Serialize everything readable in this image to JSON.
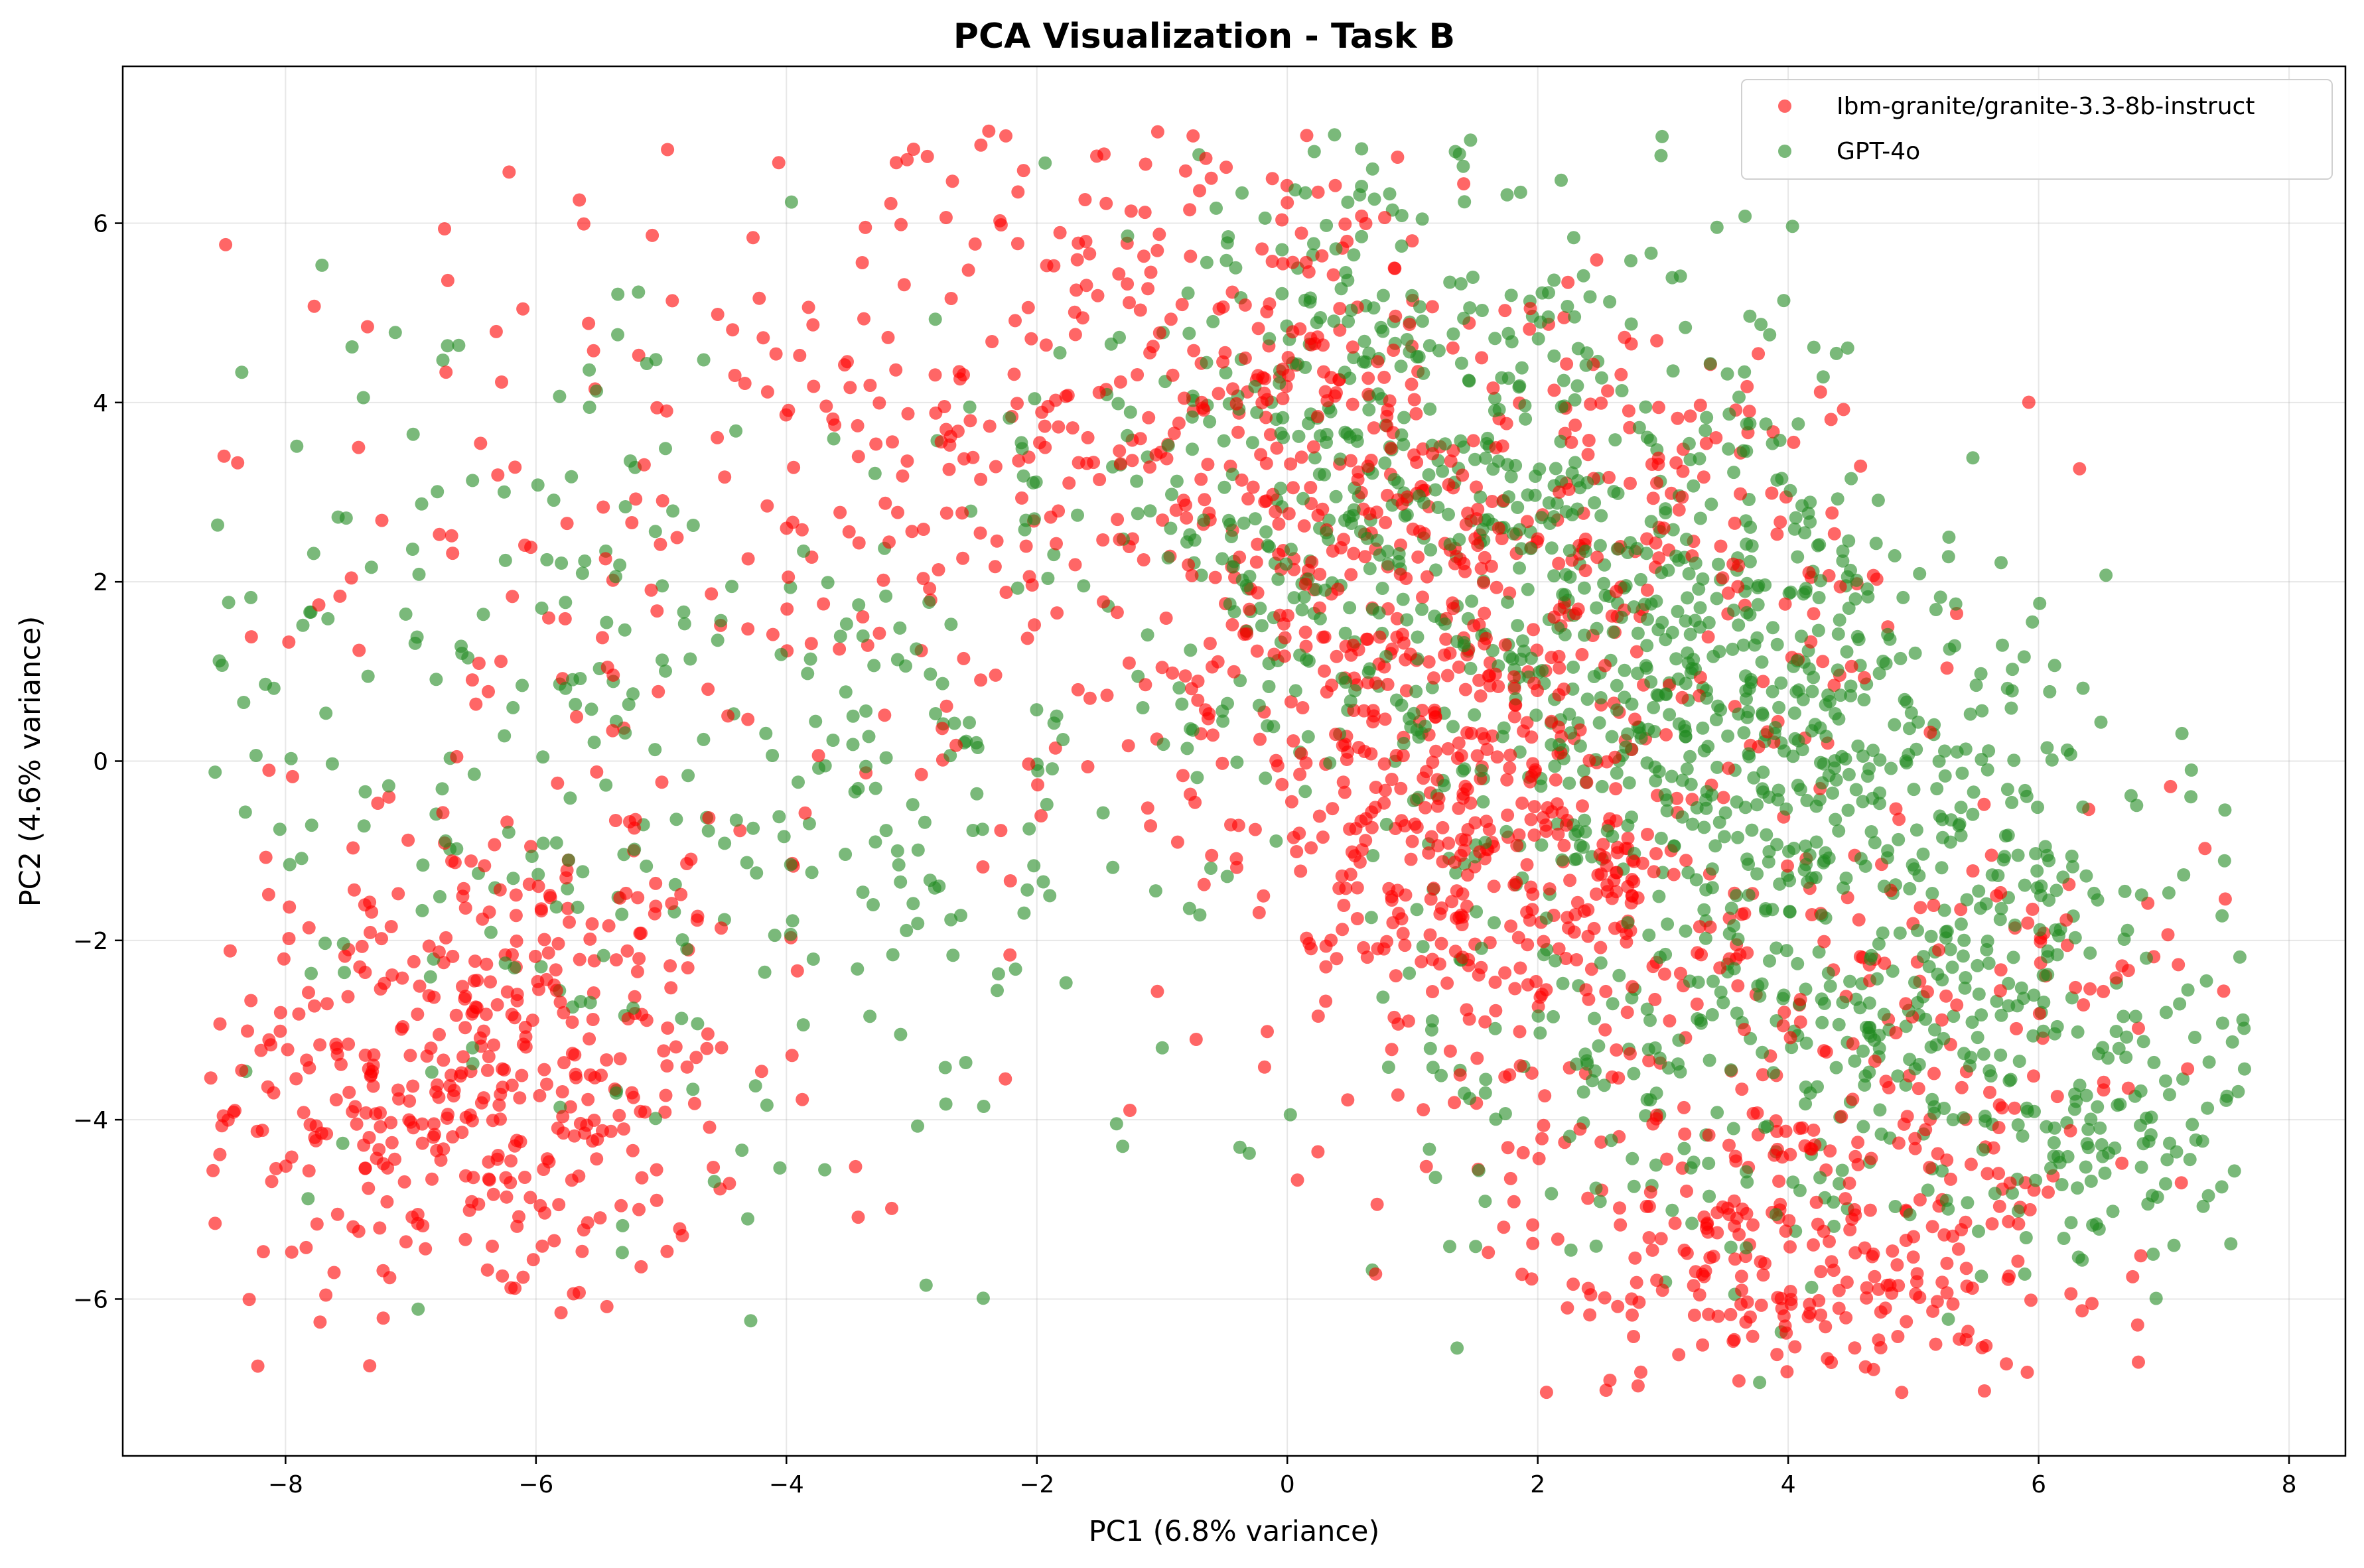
{
  "chart_data": {
    "type": "scatter",
    "title": "PCA Visualization - Task B",
    "xlabel": "PC1 (6.8% variance)",
    "ylabel": "PC2 (4.6% variance)",
    "xlim": [
      -9.3,
      8.45
    ],
    "ylim": [
      -7.75,
      7.75
    ],
    "xticks": [
      -8,
      -6,
      -4,
      -2,
      0,
      2,
      4,
      6,
      8
    ],
    "yticks": [
      -6,
      -4,
      -2,
      0,
      2,
      4,
      6
    ],
    "grid": true,
    "legend_position": "top-right",
    "series": [
      {
        "name": "Ibm-granite/granite-3.3-8b-instruct",
        "color": "#ff0000",
        "clusters": [
          {
            "cx": -6.5,
            "cy": -3.5,
            "sx": 1.1,
            "sy": 1.4,
            "n": 420
          },
          {
            "cx": -5.5,
            "cy": 1.5,
            "sx": 1.8,
            "sy": 2.4,
            "n": 120
          },
          {
            "cx": -2.5,
            "cy": 3.5,
            "sx": 1.3,
            "sy": 2.2,
            "n": 220
          },
          {
            "cx": 0.0,
            "cy": 4.0,
            "sx": 1.0,
            "sy": 1.5,
            "n": 230
          },
          {
            "cx": 1.0,
            "cy": 1.0,
            "sx": 1.0,
            "sy": 1.5,
            "n": 300
          },
          {
            "cx": 2.0,
            "cy": -1.5,
            "sx": 1.1,
            "sy": 1.3,
            "n": 320
          },
          {
            "cx": 4.0,
            "cy": -5.5,
            "sx": 1.1,
            "sy": 0.9,
            "n": 260
          },
          {
            "cx": 5.5,
            "cy": -3.0,
            "sx": 1.0,
            "sy": 1.4,
            "n": 140
          },
          {
            "cx": 3.0,
            "cy": 2.5,
            "sx": 1.2,
            "sy": 1.3,
            "n": 150
          }
        ]
      },
      {
        "name": "GPT-4o",
        "color": "#228b22",
        "clusters": [
          {
            "cx": -6.0,
            "cy": 0.5,
            "sx": 1.5,
            "sy": 2.6,
            "n": 200
          },
          {
            "cx": -3.0,
            "cy": -0.5,
            "sx": 1.5,
            "sy": 2.2,
            "n": 160
          },
          {
            "cx": 0.5,
            "cy": 3.5,
            "sx": 1.2,
            "sy": 1.8,
            "n": 350
          },
          {
            "cx": 2.5,
            "cy": 2.0,
            "sx": 1.3,
            "sy": 1.6,
            "n": 380
          },
          {
            "cx": 4.0,
            "cy": 0.0,
            "sx": 1.2,
            "sy": 1.3,
            "n": 350
          },
          {
            "cx": 5.5,
            "cy": -2.5,
            "sx": 1.1,
            "sy": 1.4,
            "n": 260
          },
          {
            "cx": 6.5,
            "cy": -4.5,
            "sx": 0.6,
            "sy": 0.6,
            "n": 80
          },
          {
            "cx": 3.0,
            "cy": -3.5,
            "sx": 1.3,
            "sy": 1.2,
            "n": 150
          }
        ]
      }
    ]
  }
}
